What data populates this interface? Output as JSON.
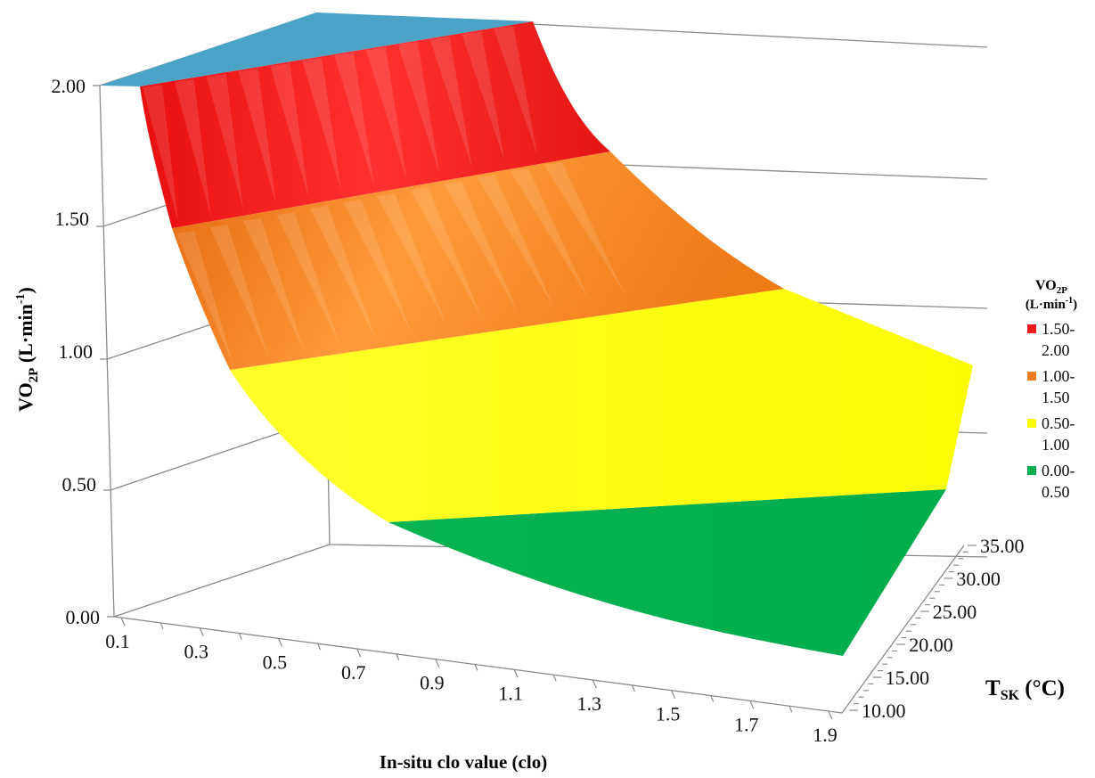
{
  "chart_data": {
    "type": "surface",
    "x_axis": {
      "label": "In-situ clo value (clo)",
      "ticks": [
        "0.1",
        "0.3",
        "0.5",
        "0.7",
        "0.9",
        "1.1",
        "1.3",
        "1.5",
        "1.7",
        "1.9"
      ],
      "range": [
        0.1,
        1.9
      ]
    },
    "y_axis": {
      "label_main": "VO",
      "label_sub": "2P",
      "label_unit": "(L·min",
      "label_sup": "-1",
      "label_close": ")",
      "ticks": [
        "0.00",
        "0.50",
        "1.00",
        "1.50",
        "2.00"
      ],
      "range": [
        0,
        2
      ]
    },
    "z_axis": {
      "label_main": "T",
      "label_sub": "SK",
      "label_unit": " (°C)",
      "ticks": [
        "10.00",
        "15.00",
        "20.00",
        "25.00",
        "30.00",
        "35.00"
      ],
      "range": [
        10,
        35
      ]
    },
    "legend": {
      "title_main": "VO",
      "title_sub": "2P",
      "title_unit": "(L·min",
      "title_sup": "-1",
      "title_close": ")",
      "placement": "right",
      "entries": [
        {
          "line1": "1.50-",
          "line2": "2.00",
          "color": "#ee1c1c"
        },
        {
          "line1": "1.00-",
          "line2": "1.50",
          "color": "#f07d1a"
        },
        {
          "line1": "0.50-",
          "line2": "1.00",
          "color": "#ffff00"
        },
        {
          "line1": "0.00-",
          "line2": "0.50",
          "color": "#00b050"
        }
      ]
    },
    "bands": [
      {
        "range": "1.50-2.00",
        "color": "#ee1c1c"
      },
      {
        "range": "1.00-1.50",
        "color": "#f07d1a"
      },
      {
        "range": "0.50-1.00",
        "color": "#ffff00"
      },
      {
        "range": "0.00-0.50",
        "color": "#00b050"
      }
    ],
    "cap_color": "#4ba3c7",
    "gridlines": true
  }
}
